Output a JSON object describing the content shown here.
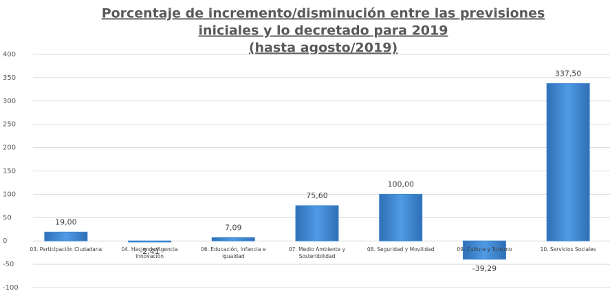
{
  "chart_data": {
    "type": "bar",
    "title": [
      "Porcentaje de incremento/disminución  entre las previsiones",
      "iniciales y lo decretado para 2019",
      "(hasta agosto/2019)"
    ],
    "categories": [
      "03. Participación Ciudadana",
      "04. Hacienda/Agencia Innovación",
      "06. Educación, Infancia e igualdad",
      "07. Medio Ambiente y Sostenibilidad",
      "08. Seguridad y Movilidad",
      "09. Cultura y Turismo",
      "10. Servicios Sociales"
    ],
    "values": [
      19.0,
      -2.41,
      7.09,
      75.6,
      100.0,
      -39.29,
      337.5
    ],
    "value_labels": [
      "19,00",
      "-2,41",
      "7,09",
      "75,60",
      "100,00",
      "-39,29",
      "337,50"
    ],
    "color": "#3d86d3",
    "ylim": [
      -100,
      400
    ],
    "yticks": [
      -100,
      -50,
      0,
      50,
      100,
      150,
      200,
      250,
      300,
      350,
      400
    ],
    "grid": true
  }
}
